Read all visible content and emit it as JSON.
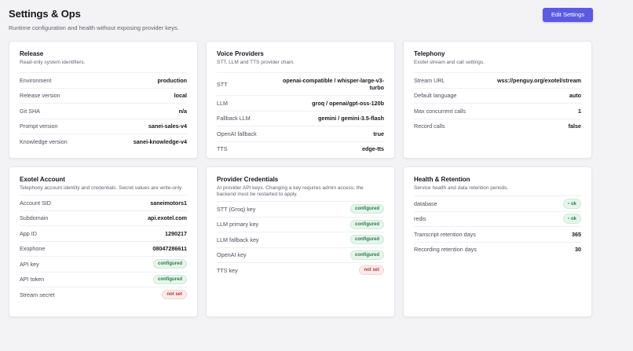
{
  "page": {
    "title": "Settings & Ops",
    "subtitle": "Runtime configuration and health without exposing provider keys.",
    "edit_label": "Edit Settings"
  },
  "colors": {
    "accent": "#5b5ae0",
    "ok": "#2c7a48",
    "danger": "#b23a3a"
  },
  "release": {
    "title": "Release",
    "desc": "Read-only system identifiers.",
    "rows": [
      {
        "k": "Environment",
        "v": "production"
      },
      {
        "k": "Release version",
        "v": "local"
      },
      {
        "k": "Git SHA",
        "v": "n/a"
      },
      {
        "k": "Prompt version",
        "v": "sanei-sales-v4"
      },
      {
        "k": "Knowledge version",
        "v": "sanei-knowledge-v4"
      }
    ]
  },
  "voice": {
    "title": "Voice Providers",
    "desc": "STT, LLM and TTS provider chain.",
    "rows": [
      {
        "k": "STT",
        "v": "openai-compatible / whisper-large-v3-turbo"
      },
      {
        "k": "LLM",
        "v": "groq / openai/gpt-oss-120b"
      },
      {
        "k": "Fallback LLM",
        "v": "gemini / gemini-3.5-flash"
      },
      {
        "k": "OpenAI fallback",
        "v": "true"
      },
      {
        "k": "TTS",
        "v": "edge-tts"
      }
    ]
  },
  "telephony": {
    "title": "Telephony",
    "desc": "Exotel stream and call settings.",
    "rows": [
      {
        "k": "Stream URL",
        "v": "wss://penguy.org/exotel/stream"
      },
      {
        "k": "Default language",
        "v": "auto"
      },
      {
        "k": "Max concurrent calls",
        "v": "1"
      },
      {
        "k": "Record calls",
        "v": "false"
      }
    ]
  },
  "exotel": {
    "title": "Exotel Account",
    "desc": "Telephony account identity and credentials. Secret values are write-only.",
    "rows": [
      {
        "k": "Account SID",
        "v": "saneimotors1"
      },
      {
        "k": "Subdomain",
        "v": "api.exotel.com"
      },
      {
        "k": "App ID",
        "v": "1290217"
      },
      {
        "k": "Exophone",
        "v": "08047286611"
      },
      {
        "k": "API key",
        "v": "configured"
      },
      {
        "k": "API token",
        "v": "configured"
      },
      {
        "k": "Stream secret",
        "v": "not set"
      }
    ]
  },
  "credentials": {
    "title": "Provider Credentials",
    "desc": "AI provider API keys. Changing a key requires admin access; the backend must be restarted to apply.",
    "rows": [
      {
        "k": "STT (Groq) key",
        "v": "configured"
      },
      {
        "k": "LLM primary key",
        "v": "configured"
      },
      {
        "k": "LLM fallback key",
        "v": "configured"
      },
      {
        "k": "OpenAI key",
        "v": "configured"
      },
      {
        "k": "TTS key",
        "v": "not set"
      }
    ]
  },
  "health": {
    "title": "Health & Retention",
    "desc": "Service health and data retention periods.",
    "rows": [
      {
        "k": "database",
        "v": "ok"
      },
      {
        "k": "redis",
        "v": "ok"
      },
      {
        "k": "Transcript retention days",
        "v": "365"
      },
      {
        "k": "Recording retention days",
        "v": "30"
      }
    ]
  }
}
